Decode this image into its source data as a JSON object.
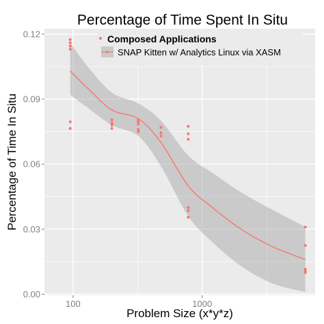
{
  "chart_data": {
    "type": "scatter",
    "title": "Percentage of  Time Spent In Situ",
    "xlabel": "Problem Size (x*y*z)",
    "ylabel": "Percentage of Time In Situ",
    "x_scale": "log10",
    "xlim": [
      60,
      7500
    ],
    "ylim": [
      -0.0005,
      0.1225
    ],
    "x_ticks": [
      100,
      1000
    ],
    "x_tick_labels": [
      "100",
      "1000"
    ],
    "y_ticks": [
      0.0,
      0.03,
      0.06,
      0.09,
      0.12
    ],
    "y_tick_labels": [
      "0.00",
      "0.03",
      "0.06",
      "0.09",
      "0.12"
    ],
    "grid": true,
    "legend": {
      "title": "Composed Applications",
      "placement": "top-right",
      "entries": [
        "SNAP Kitten w/ Analytics Linux via XASM"
      ]
    },
    "colors": {
      "series": "#f8766d",
      "panel": "#ebebeb",
      "grid": "#ffffff",
      "ribbon": "#999999"
    },
    "series": [
      {
        "name": "SNAP Kitten w/ Analytics Linux via XASM",
        "points": [
          {
            "x": 95,
            "y": 0.1175
          },
          {
            "x": 95,
            "y": 0.116
          },
          {
            "x": 95,
            "y": 0.1145
          },
          {
            "x": 95,
            "y": 0.113
          },
          {
            "x": 95,
            "y": 0.0795
          },
          {
            "x": 95,
            "y": 0.0765
          },
          {
            "x": 200,
            "y": 0.0805
          },
          {
            "x": 200,
            "y": 0.079
          },
          {
            "x": 200,
            "y": 0.078
          },
          {
            "x": 200,
            "y": 0.0765
          },
          {
            "x": 320,
            "y": 0.0805
          },
          {
            "x": 320,
            "y": 0.0795
          },
          {
            "x": 320,
            "y": 0.0785
          },
          {
            "x": 320,
            "y": 0.076
          },
          {
            "x": 320,
            "y": 0.075
          },
          {
            "x": 480,
            "y": 0.077
          },
          {
            "x": 480,
            "y": 0.0745
          },
          {
            "x": 480,
            "y": 0.073
          },
          {
            "x": 780,
            "y": 0.0775
          },
          {
            "x": 780,
            "y": 0.074
          },
          {
            "x": 780,
            "y": 0.0715
          },
          {
            "x": 780,
            "y": 0.04
          },
          {
            "x": 780,
            "y": 0.0385
          },
          {
            "x": 780,
            "y": 0.0355
          },
          {
            "x": 6300,
            "y": 0.031
          },
          {
            "x": 6300,
            "y": 0.0225
          },
          {
            "x": 6300,
            "y": 0.0115
          },
          {
            "x": 6300,
            "y": 0.0105
          },
          {
            "x": 6300,
            "y": 0.01
          }
        ],
        "smooth": {
          "x": [
            95,
            130,
            200,
            320,
            480,
            780,
            1200,
            2000,
            3500,
            6300
          ],
          "y": [
            0.103,
            0.095,
            0.085,
            0.081,
            0.07,
            0.05,
            0.04,
            0.03,
            0.022,
            0.016
          ],
          "lower": [
            0.092,
            0.086,
            0.078,
            0.073,
            0.059,
            0.036,
            0.024,
            0.013,
            0.005,
            0.001
          ],
          "upper": [
            0.116,
            0.105,
            0.093,
            0.088,
            0.08,
            0.064,
            0.056,
            0.047,
            0.039,
            0.031
          ]
        }
      }
    ]
  }
}
